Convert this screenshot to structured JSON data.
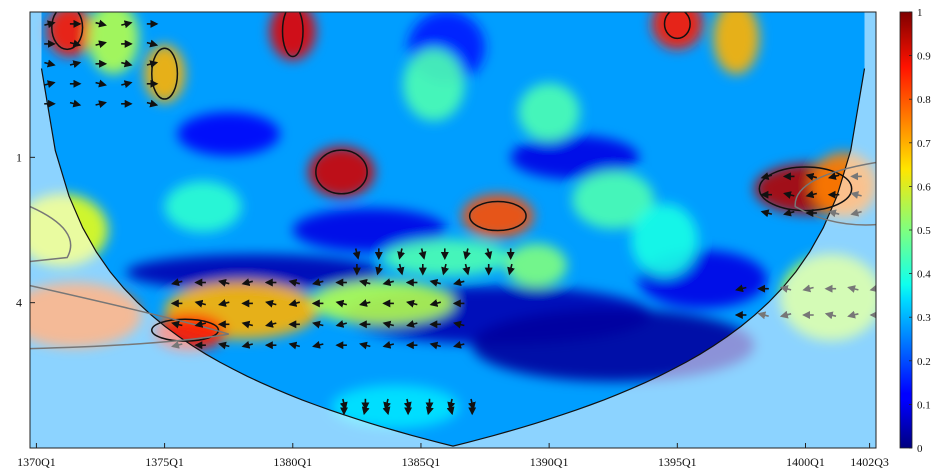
{
  "chart_data": {
    "type": "heatmap",
    "title": "",
    "xlabel": "",
    "ylabel": "",
    "x_tick_labels": [
      "1370Q1",
      "1375Q1",
      "1380Q1",
      "1385Q1",
      "1390Q1",
      "1395Q1",
      "1400Q1",
      "1402Q3"
    ],
    "x_tick_values": [
      1370.0,
      1375.0,
      1380.0,
      1385.0,
      1390.0,
      1395.0,
      1400.0,
      1402.5
    ],
    "xlim": [
      1369.75,
      1402.75
    ],
    "y_tick_labels": [
      "1",
      "4"
    ],
    "y_tick_values": [
      1,
      4
    ],
    "ylim": [
      0.25,
      16
    ],
    "y_scale": "log2",
    "y_reversed": true,
    "colorbar": {
      "ticks": [
        "0",
        "0.1",
        "0.2",
        "0.3",
        "0.4",
        "0.5",
        "0.6",
        "0.7",
        "0.8",
        "0.9",
        "1"
      ],
      "range": [
        0,
        1
      ],
      "colormap": "jet",
      "placement": "right"
    },
    "cone_of_influence": true,
    "significance_contours": [
      {
        "x": 1371.2,
        "period": 0.29
      },
      {
        "x": 1375.0,
        "period": 0.45
      },
      {
        "x": 1380.0,
        "period": 0.3
      },
      {
        "x": 1381.9,
        "period": 1.15
      },
      {
        "x": 1388.0,
        "period": 1.75
      },
      {
        "x": 1395.0,
        "period": 0.28
      },
      {
        "x": 1400.0,
        "period": 1.35
      },
      {
        "x": 1375.8,
        "period": 5.2
      }
    ],
    "high_power_regions_outside_cone": [
      {
        "x_range": [
          1369.75,
          1373.5
        ],
        "period_range": [
          3.2,
          6.0
        ]
      },
      {
        "x_range": [
          1399.5,
          1402.75
        ],
        "period_range": [
          1.1,
          1.9
        ]
      },
      {
        "x_range": [
          1369.75,
          1372.0
        ],
        "period_range": [
          1.6,
          2.6
        ]
      }
    ],
    "phase_arrows_regions": [
      {
        "x_range": [
          1370.5,
          1374.5
        ],
        "period_range": [
          0.28,
          0.6
        ],
        "direction": "right"
      },
      {
        "x_range": [
          1375.5,
          1386.5
        ],
        "period_range": [
          3.3,
          6.0
        ],
        "direction": "left"
      },
      {
        "x_range": [
          1382.5,
          1388.5
        ],
        "period_range": [
          2.5,
          2.9
        ],
        "direction": "down"
      },
      {
        "x_range": [
          1382.0,
          1387.0
        ],
        "period_range": [
          10.5,
          11.0
        ],
        "direction": "down"
      },
      {
        "x_range": [
          1397.5,
          1402.75
        ],
        "period_range": [
          3.5,
          4.5
        ],
        "direction": "left"
      },
      {
        "x_range": [
          1398.5,
          1402.0
        ],
        "period_range": [
          1.2,
          1.7
        ],
        "direction": "left"
      }
    ]
  }
}
